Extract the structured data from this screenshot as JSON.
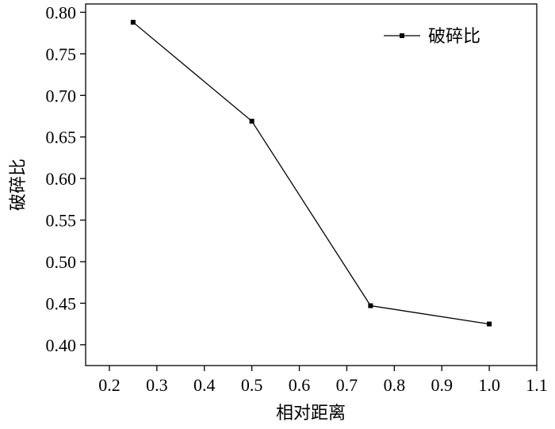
{
  "chart_data": {
    "type": "line",
    "title": "",
    "xlabel": "相对距离",
    "ylabel": "破碎比",
    "xlim": [
      0.15,
      1.1
    ],
    "ylim": [
      0.375,
      0.81
    ],
    "xticks": [
      "0.2",
      "0.3",
      "0.4",
      "0.5",
      "0.6",
      "0.7",
      "0.8",
      "0.9",
      "1.0",
      "1.1"
    ],
    "yticks": [
      "0.40",
      "0.45",
      "0.50",
      "0.55",
      "0.60",
      "0.65",
      "0.70",
      "0.75",
      "0.80"
    ],
    "grid": false,
    "legend_position": "top-right",
    "series": [
      {
        "name": "破碎比",
        "color": "#000000",
        "marker": "square",
        "x": [
          0.25,
          0.5,
          0.75,
          1.0
        ],
        "y": [
          0.788,
          0.669,
          0.447,
          0.425
        ]
      }
    ]
  }
}
